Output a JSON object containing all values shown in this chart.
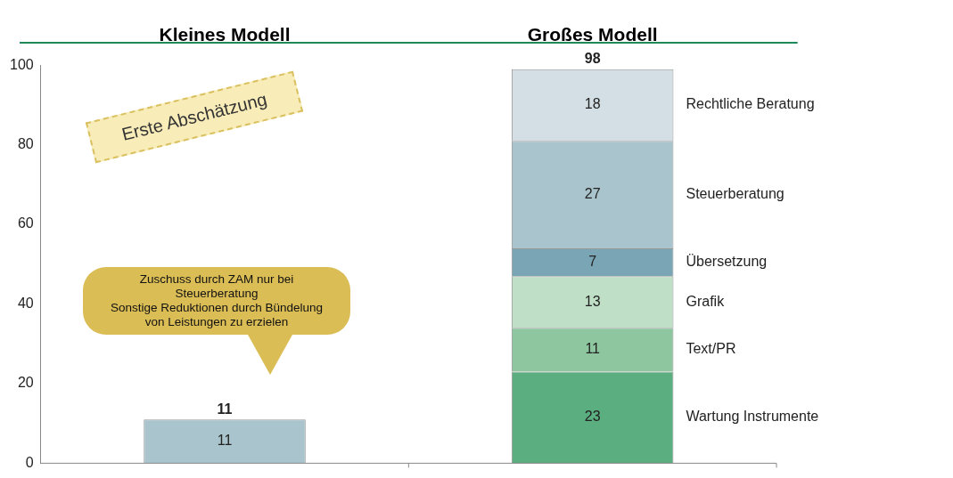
{
  "chart_data": {
    "type": "bar",
    "stacked": true,
    "categories": [
      "Kleines Modell",
      "Großes Modell"
    ],
    "series": [
      {
        "name": "Wartung Instrumente",
        "color": "#5aae7f",
        "values": [
          null,
          23
        ]
      },
      {
        "name": "Text/PR",
        "color": "#8dc69f",
        "values": [
          null,
          11
        ]
      },
      {
        "name": "Grafik",
        "color": "#bfe0c7",
        "values": [
          null,
          13
        ]
      },
      {
        "name": "Übersetzung",
        "color": "#7aa5b4",
        "values": [
          null,
          7
        ]
      },
      {
        "name": "Steuerberatung",
        "color": "#a9c4cc",
        "values": [
          11,
          27
        ]
      },
      {
        "name": "Rechtliche Beratung",
        "color": "#d3dfe4",
        "values": [
          null,
          18
        ]
      }
    ],
    "totals": [
      "11",
      "98"
    ],
    "data_labels": true,
    "ylim": [
      0,
      100
    ],
    "yticks": [
      0,
      20,
      40,
      60,
      80,
      100
    ],
    "grid": false,
    "legend": false,
    "annotations": [
      "Erste Abschätzung",
      "Zuschuss durch ZAM nur bei Steuerberatung\nSonstige Reduktionen durch Bündelung von Leistungen zu erzielen"
    ]
  }
}
